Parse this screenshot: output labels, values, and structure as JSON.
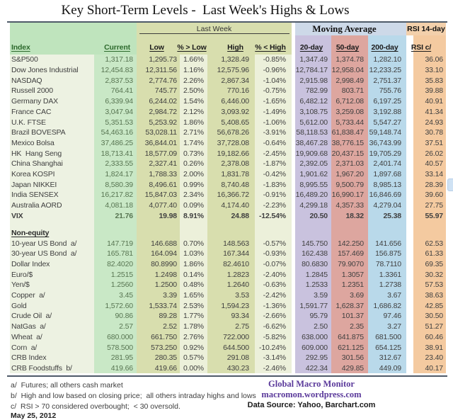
{
  "title": "Key Short-Term Levels -  Last Week's Highs & Lows",
  "groups": {
    "last_week": "Last Week",
    "moving_average": "Moving Average",
    "rsi_band": "RSI 14-day"
  },
  "chart_data": {
    "type": "table",
    "columns": [
      "Index",
      "Current",
      "Low",
      "% > Low",
      "High",
      "% < High",
      "20-day",
      "50-day",
      "200-day",
      "RSI c/"
    ],
    "rows": [
      {
        "name": "S&P500",
        "values": [
          "1,317.18",
          "1,295.73",
          "1.66%",
          "1,328.49",
          "-0.85%",
          "1,347.49",
          "1,374.78",
          "1,282.10",
          "36.06"
        ]
      },
      {
        "name": "Dow Jones Industrial",
        "values": [
          "12,454.83",
          "12,311.56",
          "1.16%",
          "12,575.96",
          "-0.96%",
          "12,784.17",
          "12,958.04",
          "12,233.25",
          "33.10"
        ]
      },
      {
        "name": "NASDAQ",
        "values": [
          "2,837.53",
          "2,774.76",
          "2.26%",
          "2,867.34",
          "-1.04%",
          "2,915.98",
          "2,998.49",
          "2,751.37",
          "35.83"
        ]
      },
      {
        "name": "Russell 2000",
        "values": [
          "764.41",
          "745.77",
          "2.50%",
          "770.16",
          "-0.75%",
          "782.99",
          "803.71",
          "755.76",
          "39.88"
        ]
      },
      {
        "name": "Germany DAX",
        "values": [
          "6,339.94",
          "6,244.02",
          "1.54%",
          "6,446.00",
          "-1.65%",
          "6,482.12",
          "6,712.08",
          "6,197.25",
          "40.91"
        ]
      },
      {
        "name": "France CAC",
        "values": [
          "3,047.94",
          "2,984.72",
          "2.12%",
          "3,093.92",
          "-1.49%",
          "3,108.75",
          "3,259.08",
          "3,192.88",
          "41.34"
        ]
      },
      {
        "name": "U.K. FTSE",
        "values": [
          "5,351.53",
          "5,253.92",
          "1.86%",
          "5,408.65",
          "-1.06%",
          "5,612.00",
          "5,733.44",
          "5,547.27",
          "24.93"
        ]
      },
      {
        "name": "Brazil BOVESPA",
        "values": [
          "54,463.16",
          "53,028.11",
          "2.71%",
          "56,678.26",
          "-3.91%",
          "58,118.53",
          "61,838.47",
          "59,148.74",
          "30.78"
        ]
      },
      {
        "name": "Mexico Bolsa",
        "values": [
          "37,486.25",
          "36,844.01",
          "1.74%",
          "37,728.08",
          "-0.64%",
          "38,467.28",
          "38,776.15",
          "36,743.99",
          "37.51"
        ]
      },
      {
        "name": "HK  Hang Seng",
        "values": [
          "18,713.41",
          "18,577.09",
          "0.73%",
          "19,182.66",
          "-2.45%",
          "19,909.68",
          "20,437.15",
          "19,705.29",
          "26.02"
        ]
      },
      {
        "name": "China Shanghai",
        "values": [
          "2,333.55",
          "2,327.41",
          "0.26%",
          "2,378.08",
          "-1.87%",
          "2,392.05",
          "2,371.03",
          "2,401.74",
          "40.57"
        ]
      },
      {
        "name": "Korea KOSPI",
        "values": [
          "1,824.17",
          "1,788.33",
          "2.00%",
          "1,831.78",
          "-0.42%",
          "1,901.62",
          "1,967.20",
          "1,897.68",
          "33.14"
        ]
      },
      {
        "name": "Japan NIKKEI",
        "values": [
          "8,580.39",
          "8,496.61",
          "0.99%",
          "8,740.48",
          "-1.83%",
          "8,995.55",
          "9,500.79",
          "8,985.13",
          "28.39"
        ]
      },
      {
        "name": "India SENSEX",
        "values": [
          "16,217.82",
          "15,847.03",
          "2.34%",
          "16,366.72",
          "-0.91%",
          "16,489.20",
          "16,990.17",
          "16,846.69",
          "39.60"
        ]
      },
      {
        "name": "Australia AORD",
        "values": [
          "4,081.18",
          "4,077.40",
          "0.09%",
          "4,174.40",
          "-2.23%",
          "4,299.18",
          "4,357.33",
          "4,279.04",
          "27.75"
        ]
      },
      {
        "name": "VIX",
        "bold": true,
        "values": [
          "21.76",
          "19.98",
          "8.91%",
          "24.88",
          "-12.54%",
          "20.50",
          "18.32",
          "25.38",
          "55.97"
        ]
      },
      {
        "section_header": "Non-equity"
      },
      {
        "name": "10-year US Bond  a/",
        "values": [
          "147.719",
          "146.688",
          "0.70%",
          "148.563",
          "-0.57%",
          "145.750",
          "142.250",
          "141.656",
          "62.53"
        ]
      },
      {
        "name": "30-year US Bond  a/",
        "values": [
          "165.781",
          "164.094",
          "1.03%",
          "167.344",
          "-0.93%",
          "162.438",
          "157.469",
          "156.875",
          "61.33"
        ]
      },
      {
        "name": "Dollar Index",
        "values": [
          "82.4020",
          "80.8990",
          "1.86%",
          "82.4610",
          "-0.07%",
          "80.6830",
          "79.9070",
          "78.7110",
          "69.35"
        ]
      },
      {
        "name": "Euro/$",
        "values": [
          "1.2515",
          "1.2498",
          "0.14%",
          "1.2823",
          "-2.40%",
          "1.2845",
          "1.3057",
          "1.3361",
          "30.32"
        ]
      },
      {
        "name": "Yen/$",
        "values": [
          "1.2560",
          "1.2500",
          "0.48%",
          "1.2640",
          "-0.63%",
          "1.2533",
          "1.2351",
          "1.2738",
          "57.53"
        ]
      },
      {
        "name": "Copper  a/",
        "values": [
          "3.45",
          "3.39",
          "1.65%",
          "3.53",
          "-2.42%",
          "3.59",
          "3.69",
          "3.67",
          "38.63"
        ]
      },
      {
        "name": "Gold",
        "values": [
          "1,572.60",
          "1,533.74",
          "2.53%",
          "1,594.23",
          "-1.36%",
          "1,591.77",
          "1,628.37",
          "1,686.82",
          "42.85"
        ]
      },
      {
        "name": "Crude Oil  a/",
        "values": [
          "90.86",
          "89.28",
          "1.77%",
          "93.34",
          "-2.66%",
          "95.79",
          "101.37",
          "97.46",
          "30.50"
        ]
      },
      {
        "name": "NatGas  a/",
        "values": [
          "2.57",
          "2.52",
          "1.78%",
          "2.75",
          "-6.62%",
          "2.50",
          "2.35",
          "3.27",
          "51.27"
        ]
      },
      {
        "name": "Wheat  a/",
        "values": [
          "680.000",
          "661.750",
          "2.76%",
          "722.000",
          "-5.82%",
          "638.000",
          "641.875",
          "681.500",
          "60.46"
        ]
      },
      {
        "name": "Corn  a/",
        "values": [
          "578.500",
          "573.250",
          "0.92%",
          "644.500",
          "-10.24%",
          "609.000",
          "621.125",
          "654.125",
          "38.91"
        ]
      },
      {
        "name": "CRB Index",
        "values": [
          "281.95",
          "280.35",
          "0.57%",
          "291.08",
          "-3.14%",
          "292.95",
          "301.56",
          "312.67",
          "23.40"
        ]
      },
      {
        "name": "CRB Foodstuffs  b/",
        "values": [
          "419.66",
          "419.66",
          "0.00%",
          "430.23",
          "-2.46%",
          "422.34",
          "429.85",
          "449.09",
          "40.17"
        ]
      }
    ]
  },
  "footnotes": {
    "a": "a/  Futures; all others cash market",
    "b": "b/  High and low based on closing price;  all others intraday highs and lows",
    "c": "c/  RSI > 70 considered overbought;  < 30 oversold.",
    "date": "May 25, 2012"
  },
  "branding": {
    "line1": "Global Macro Monitor",
    "line2": "macromon.wordpress.com",
    "line3": "Data Source: Yahoo, Barchart.com"
  },
  "colors": {
    "mint_band": "#bfe4bd",
    "mint_body": "#c9e8c6",
    "index_col": "#edf2e2",
    "olive": "#d8deae",
    "pale_olive": "#ecf0da",
    "lavender": "#c9c2de",
    "rose": "#dda69f",
    "light_blue": "#b9d9ea",
    "peach": "#f4caa0",
    "ma_band": "#cdd9e8",
    "rsi_band": "#f3d0ab",
    "rule": "#4e5a68",
    "brand_purple": "#5b3a9b"
  }
}
